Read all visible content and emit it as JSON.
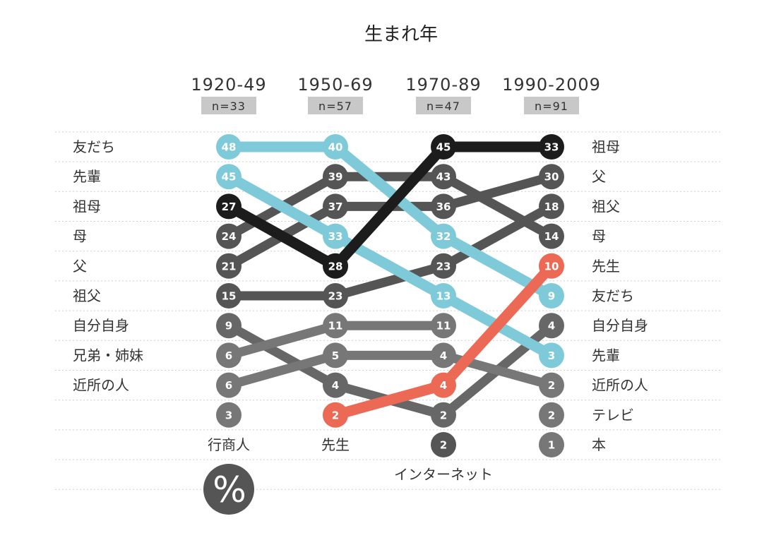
{
  "chart_data": {
    "type": "slope",
    "title": "生まれ年",
    "periods": [
      {
        "label": "1920-49",
        "n": "n=33"
      },
      {
        "label": "1950-69",
        "n": "n=57"
      },
      {
        "label": "1970-89",
        "n": "n=47"
      },
      {
        "label": "1990-2009",
        "n": "n=91"
      }
    ],
    "unit_icon": "%",
    "left_labels": [
      "友だち",
      "先輩",
      "祖母",
      "母",
      "父",
      "祖父",
      "自分自身",
      "兄弟・姉妹",
      "近所の人"
    ],
    "right_labels": [
      "祖母",
      "父",
      "祖父",
      "母",
      "先生",
      "友だち",
      "自分自身",
      "先輩",
      "近所の人",
      "テレビ",
      "本"
    ],
    "column_labels": [
      {
        "col": 0,
        "rank": 10,
        "label": "行商人"
      },
      {
        "col": 1,
        "rank": 10,
        "label": "先生"
      },
      {
        "col": 2,
        "rank": 11,
        "label": "インターネット"
      }
    ],
    "series": [
      {
        "name": "友だち",
        "color": "#7fcad9",
        "emphasis": true,
        "points": [
          {
            "col": 0,
            "rank": 0,
            "value": 48
          },
          {
            "col": 1,
            "rank": 0,
            "value": 40
          },
          {
            "col": 2,
            "rank": 3,
            "value": 32
          },
          {
            "col": 3,
            "rank": 5,
            "value": 9
          }
        ]
      },
      {
        "name": "先輩",
        "color": "#7fcad9",
        "emphasis": true,
        "points": [
          {
            "col": 0,
            "rank": 1,
            "value": 45
          },
          {
            "col": 1,
            "rank": 3,
            "value": 33
          },
          {
            "col": 2,
            "rank": 5,
            "value": 13
          },
          {
            "col": 3,
            "rank": 7,
            "value": 3
          }
        ]
      },
      {
        "name": "祖母",
        "color": "#1c1c1c",
        "emphasis": true,
        "points": [
          {
            "col": 0,
            "rank": 2,
            "value": 27
          },
          {
            "col": 1,
            "rank": 4,
            "value": 28
          },
          {
            "col": 2,
            "rank": 0,
            "value": 45
          },
          {
            "col": 3,
            "rank": 0,
            "value": 33
          }
        ]
      },
      {
        "name": "母",
        "color": "#555555",
        "emphasis": false,
        "points": [
          {
            "col": 0,
            "rank": 3,
            "value": 24
          },
          {
            "col": 1,
            "rank": 1,
            "value": 39
          },
          {
            "col": 2,
            "rank": 1,
            "value": 43
          },
          {
            "col": 3,
            "rank": 3,
            "value": 14
          }
        ]
      },
      {
        "name": "父",
        "color": "#555555",
        "emphasis": false,
        "points": [
          {
            "col": 0,
            "rank": 4,
            "value": 21
          },
          {
            "col": 1,
            "rank": 2,
            "value": 37
          },
          {
            "col": 2,
            "rank": 2,
            "value": 36
          },
          {
            "col": 3,
            "rank": 1,
            "value": 30
          }
        ]
      },
      {
        "name": "祖父",
        "color": "#555555",
        "emphasis": false,
        "points": [
          {
            "col": 0,
            "rank": 5,
            "value": 15
          },
          {
            "col": 1,
            "rank": 5,
            "value": 23
          },
          {
            "col": 2,
            "rank": 4,
            "value": 23
          },
          {
            "col": 3,
            "rank": 2,
            "value": 18
          }
        ]
      },
      {
        "name": "自分自身",
        "color": "#676767",
        "emphasis": false,
        "points": [
          {
            "col": 0,
            "rank": 6,
            "value": 9
          },
          {
            "col": 1,
            "rank": 8,
            "value": 4
          },
          {
            "col": 2,
            "rank": 9,
            "value": 2
          },
          {
            "col": 3,
            "rank": 6,
            "value": 4
          }
        ]
      },
      {
        "name": "兄弟・姉妹",
        "color": "#777777",
        "emphasis": false,
        "points": [
          {
            "col": 0,
            "rank": 7,
            "value": 6
          },
          {
            "col": 1,
            "rank": 6,
            "value": 11
          },
          {
            "col": 2,
            "rank": 6,
            "value": 11
          }
        ]
      },
      {
        "name": "近所の人",
        "color": "#777777",
        "emphasis": false,
        "points": [
          {
            "col": 0,
            "rank": 8,
            "value": 6
          },
          {
            "col": 1,
            "rank": 7,
            "value": 5
          },
          {
            "col": 2,
            "rank": 7,
            "value": 4
          },
          {
            "col": 3,
            "rank": 8,
            "value": 2
          }
        ]
      },
      {
        "name": "先生",
        "color": "#ec6a55",
        "emphasis": true,
        "points": [
          {
            "col": 1,
            "rank": 9,
            "value": 2
          },
          {
            "col": 2,
            "rank": 8,
            "value": 4
          },
          {
            "col": 3,
            "rank": 4,
            "value": 10
          }
        ]
      },
      {
        "name": "行商人",
        "color": "#777777",
        "emphasis": false,
        "points": [
          {
            "col": 0,
            "rank": 9,
            "value": 3
          }
        ]
      },
      {
        "name": "インターネット",
        "color": "#555555",
        "emphasis": false,
        "points": [
          {
            "col": 2,
            "rank": 10,
            "value": 2
          }
        ]
      },
      {
        "name": "テレビ",
        "color": "#777777",
        "emphasis": false,
        "points": [
          {
            "col": 3,
            "rank": 9,
            "value": 2
          }
        ]
      },
      {
        "name": "本",
        "color": "#777777",
        "emphasis": false,
        "points": [
          {
            "col": 3,
            "rank": 10,
            "value": 1
          }
        ]
      }
    ]
  }
}
